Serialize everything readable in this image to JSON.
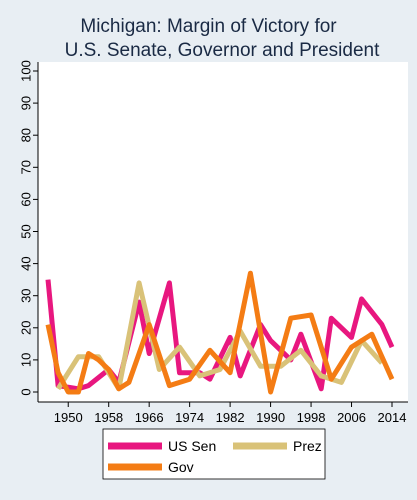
{
  "chart_data": {
    "type": "line",
    "title": "Michigan: Margin of Victory for",
    "subtitle": "U.S. Senate, Governor and President",
    "xlabel": "",
    "ylabel": "",
    "xlim": [
      1946,
      2014
    ],
    "ylim": [
      0,
      100
    ],
    "x_ticks": [
      1950,
      1958,
      1966,
      1974,
      1982,
      1990,
      1998,
      2006,
      2014
    ],
    "x_tick_labels": [
      "1950",
      "1958",
      "1966",
      "1974",
      "1982",
      "1990",
      "1998",
      "2006",
      "2014"
    ],
    "y_ticks": [
      0,
      10,
      20,
      30,
      40,
      50,
      60,
      70,
      80,
      90,
      100
    ],
    "y_tick_labels": [
      "0",
      "10",
      "20",
      "30",
      "40",
      "50",
      "60",
      "70",
      "80",
      "90",
      "100"
    ],
    "grid": false,
    "legend_position": "bottom",
    "colors": {
      "background": "#e8eef3",
      "plot_background": "#ffffff",
      "title": "#1a2a44",
      "axis": "#000000"
    },
    "series": [
      {
        "name": "US Sen",
        "color": "#e8177f",
        "x": [
          1946,
          1948,
          1952,
          1954,
          1958,
          1960,
          1964,
          1966,
          1970,
          1972,
          1976,
          1978,
          1982,
          1984,
          1988,
          1990,
          1994,
          1996,
          2000,
          2002,
          2006,
          2008,
          2012,
          2014
        ],
        "y": [
          35,
          2,
          1,
          2,
          7,
          3,
          28,
          12,
          34,
          6,
          6,
          4,
          17,
          5,
          21,
          16,
          10,
          18,
          1,
          23,
          17,
          29,
          21,
          14
        ]
      },
      {
        "name": "Prez",
        "color": "#d9c278",
        "x": [
          1948,
          1952,
          1956,
          1960,
          1964,
          1968,
          1972,
          1976,
          1980,
          1984,
          1988,
          1992,
          1996,
          2000,
          2004,
          2008,
          2012
        ],
        "y": [
          1,
          11,
          11,
          1,
          34,
          7,
          14,
          5,
          7,
          19,
          8,
          8,
          13,
          5,
          3,
          16,
          9
        ]
      },
      {
        "name": "Gov",
        "color": "#f47c14",
        "x": [
          1946,
          1948,
          1950,
          1952,
          1954,
          1956,
          1958,
          1960,
          1962,
          1964,
          1966,
          1970,
          1974,
          1978,
          1982,
          1986,
          1990,
          1994,
          1998,
          2002,
          2006,
          2010,
          2014
        ],
        "y": [
          21,
          6,
          0,
          0,
          12,
          10,
          7,
          1,
          3,
          12,
          21,
          2,
          4,
          13,
          6,
          37,
          0,
          23,
          24,
          4,
          14,
          18,
          4
        ]
      }
    ]
  }
}
